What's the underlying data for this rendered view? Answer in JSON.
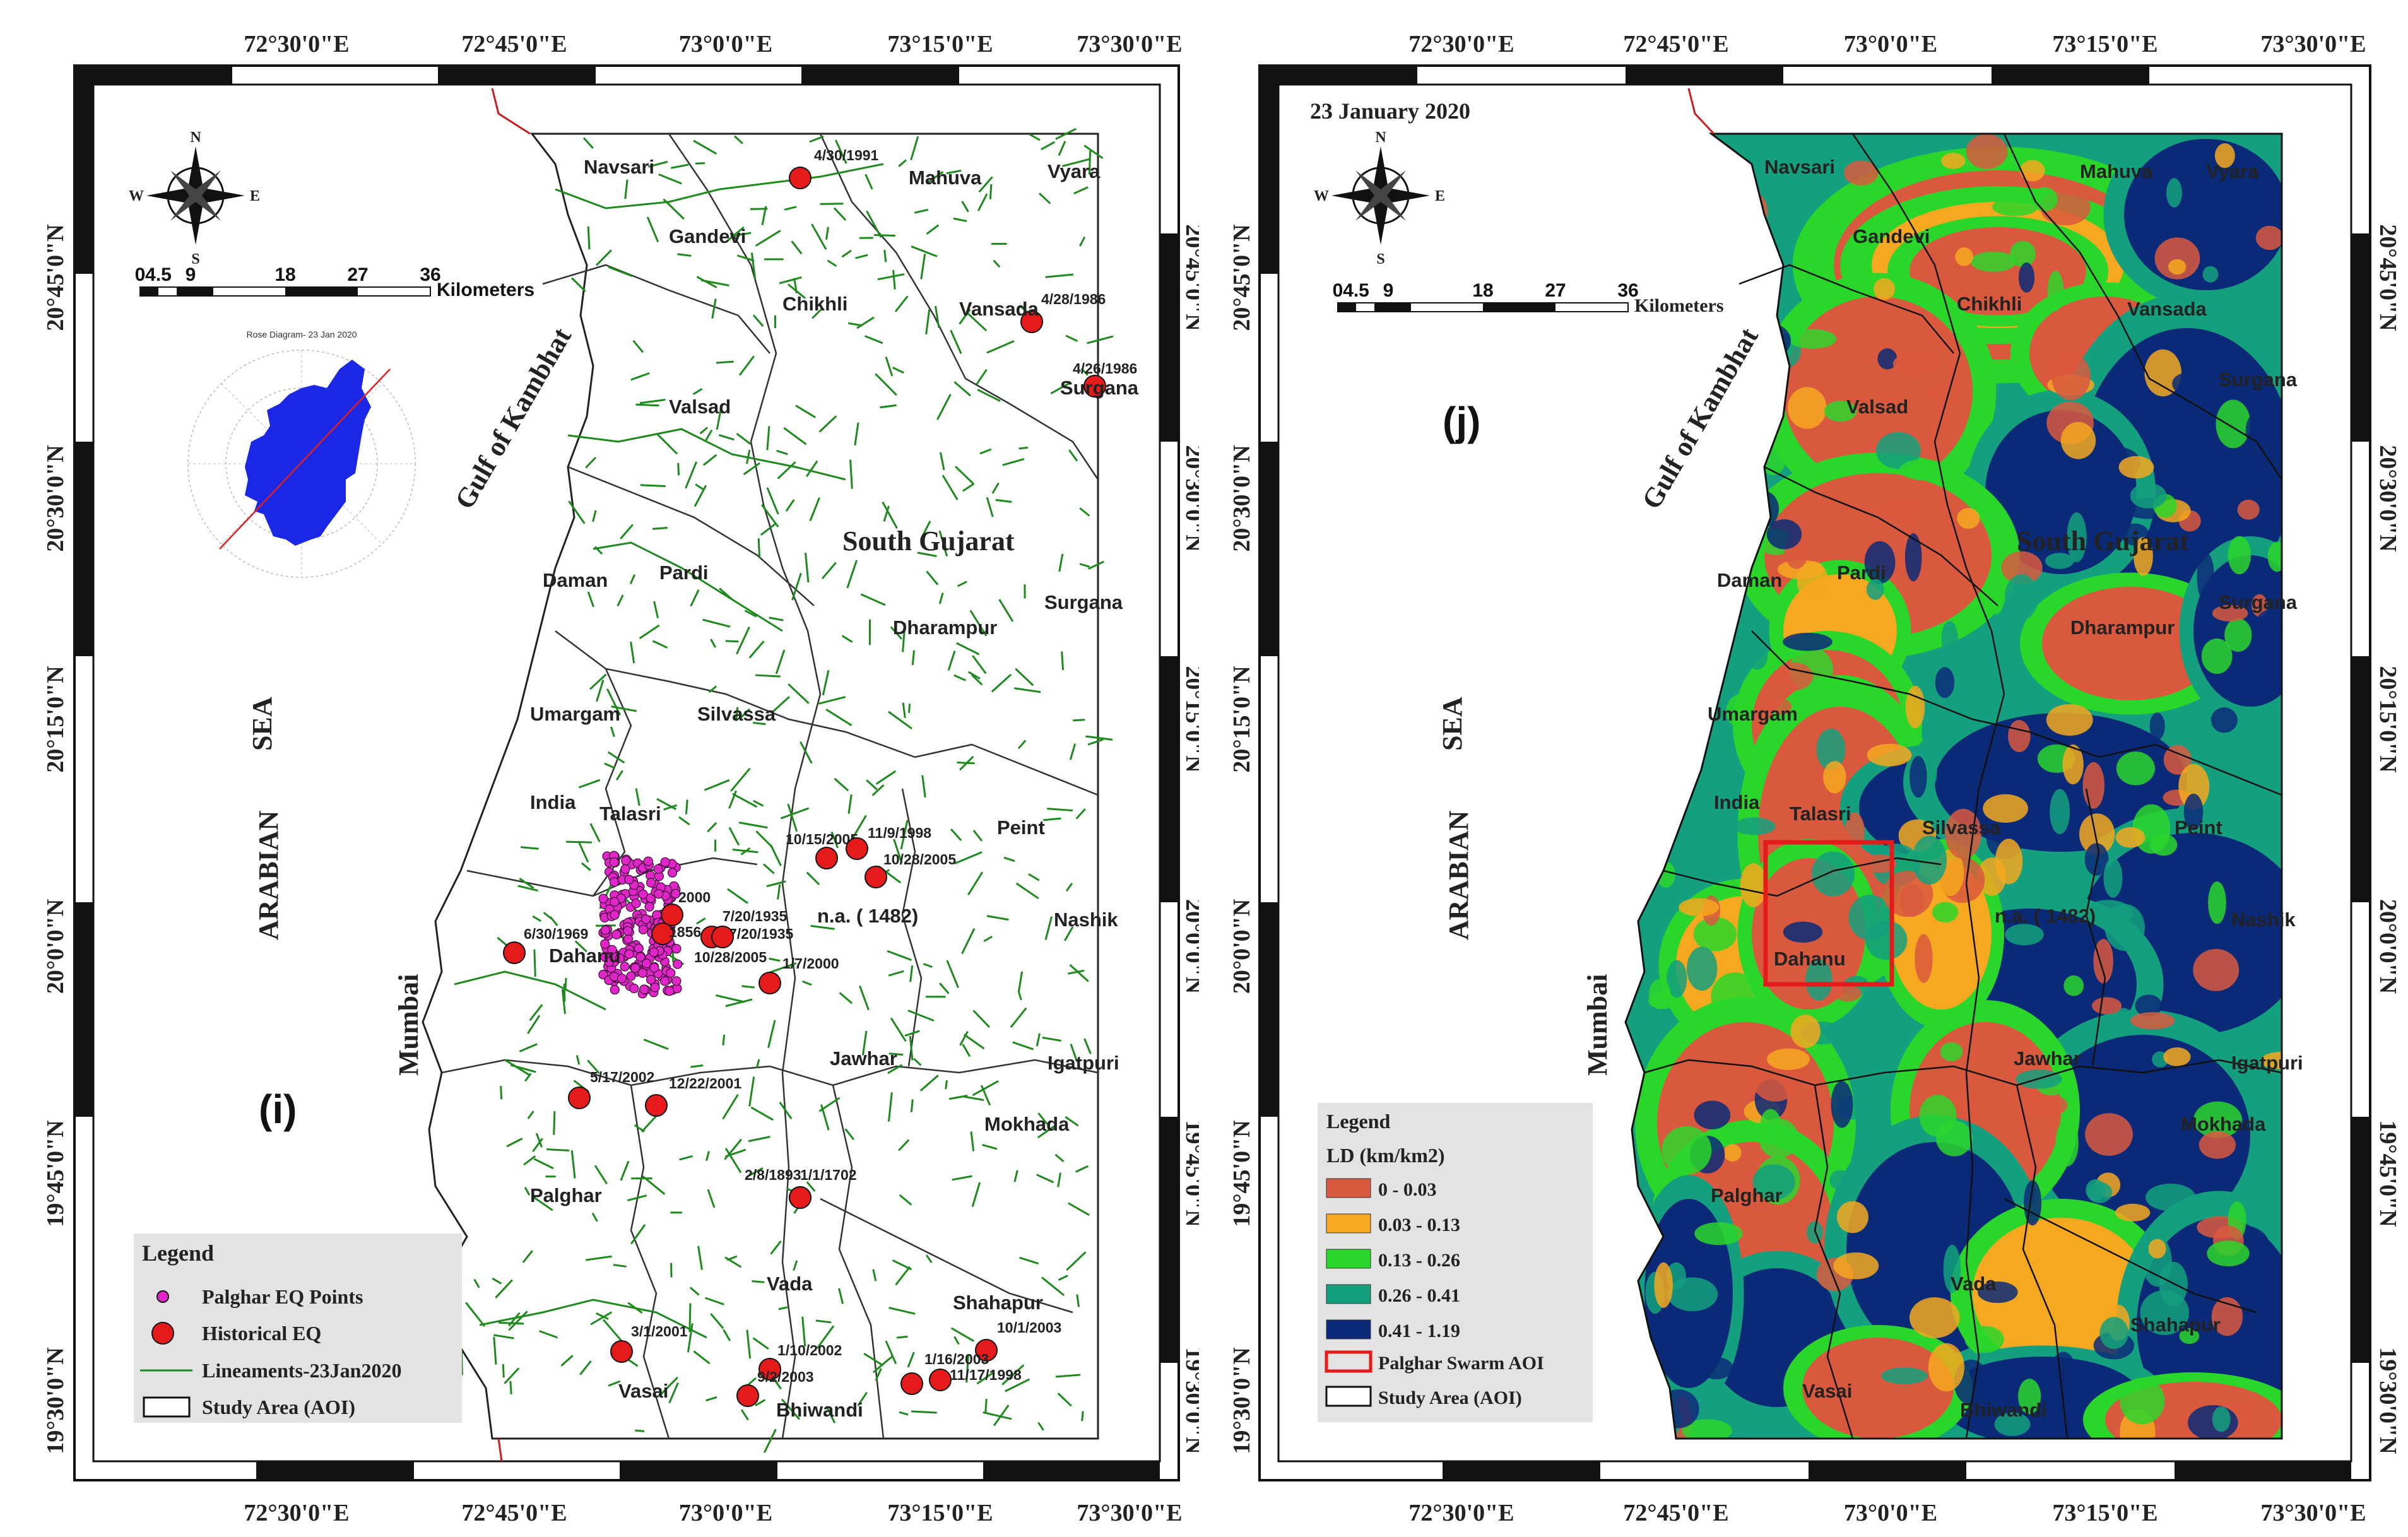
{
  "axes": {
    "longitudes": [
      "72°30'0\"E",
      "72°45'0\"E",
      "73°0'0\"E",
      "73°15'0\"E",
      "73°30'0\"E"
    ],
    "latitudes": [
      "20°45'0\"N",
      "20°30'0\"N",
      "20°15'0\"N",
      "20°0'0\"N",
      "19°45'0\"N",
      "19°30'0\"N"
    ]
  },
  "compass": {
    "n": "N",
    "s": "S",
    "e": "E",
    "w": "W"
  },
  "scale_bar": {
    "ticks": [
      "0",
      "4.5",
      "9",
      "18",
      "27",
      "36"
    ],
    "unit": "Kilometers"
  },
  "places": {
    "navsari": "Navsari",
    "gandevi": "Gandevi",
    "mahuva": "Mahuva",
    "vyara": "Vyara",
    "chikhli": "Chikhli",
    "vansada": "Vansada",
    "surgana": "Surgana",
    "valsad": "Valsad",
    "gulf": "Gulf   of   Kambhat",
    "south_gujarat": "South Gujarat",
    "daman": "Daman",
    "pardi": "Pardi",
    "dharampur": "Dharampur",
    "umargam": "Umargam",
    "silvassa": "Silvassa",
    "talasri": "Talasri",
    "india": "India",
    "peint": "Peint",
    "na": "n.a. ( 1482)",
    "nashik": "Nashik",
    "dahanu": "Dahanu",
    "mumbai": "Mumbai",
    "jawhar": "Jawhar",
    "igatpuri": "Igatpuri",
    "mokhada": "Mokhada",
    "palghar": "Palghar",
    "vada": "Vada",
    "shahapur": "Shahapur",
    "vasai": "Vasai",
    "bhiwandi": "Bhiwandi",
    "sea": "SEA",
    "arabian": "ARABIAN"
  },
  "left_map": {
    "panel_label": "(i)",
    "rose_title": "Rose Diagram- 23 Jan 2020",
    "legend": {
      "title": "Legend",
      "items": [
        "Palghar EQ Points",
        "Historical EQ",
        "Lineaments-23Jan2020",
        "Study Area (AOI)"
      ]
    },
    "eq_labels": [
      "4/30/1991",
      "4/28/1986",
      "4/26/1986",
      "10/15/2005",
      "11/9/1998",
      "10/28/2005",
      "6/30/1969",
      "7/20/1935",
      "7/20/1935",
      "10/28/2005",
      "1/7/2000",
      "2000",
      "1856",
      "5/17/2002",
      "12/22/2001",
      "2/8/1893",
      "1/1/1702",
      "3/1/2001",
      "1/10/2002",
      "9/2/2003",
      "10/1/2003",
      "1/16/2003",
      "11/17/1998"
    ]
  },
  "right_map": {
    "date_title": "23 January 2020",
    "panel_label": "(j)",
    "legend": {
      "title": "Legend",
      "subtitle": "LD (km/km2)",
      "classes": [
        {
          "label": "0 - 0.03",
          "color": "#d9593e"
        },
        {
          "label": "0.03 - 0.13",
          "color": "#f5a820"
        },
        {
          "label": "0.13 - 0.26",
          "color": "#2bd62b"
        },
        {
          "label": "0.26 - 0.41",
          "color": "#14a07e"
        },
        {
          "label": "0.41 - 1.19",
          "color": "#0a2a78"
        }
      ],
      "aoi_label": "Palghar Swarm AOI",
      "study_label": "Study Area (AOI)"
    }
  },
  "colors": {
    "lineament": "#1e8a1e",
    "eq_point": "#e026c8",
    "historical": "#e51b1b",
    "boundary": "#111111",
    "aoi": "#e51b1b"
  }
}
